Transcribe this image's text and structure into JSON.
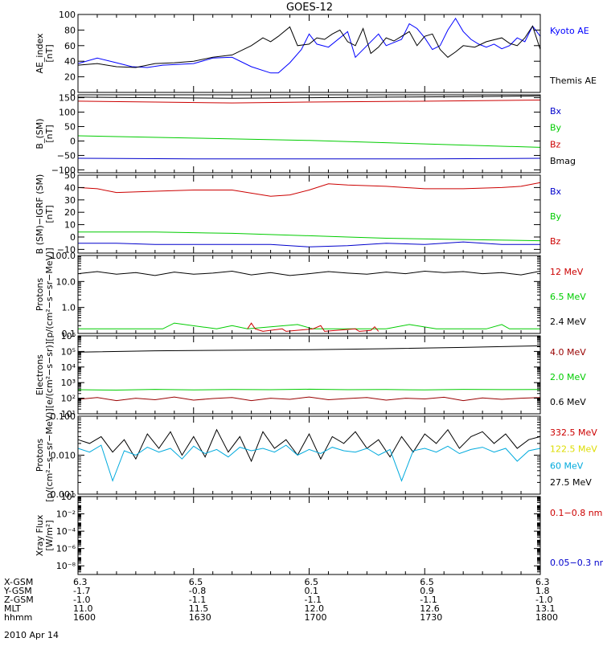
{
  "title": "GOES-12",
  "date": "2010 Apr 14",
  "x_ticks": [
    "1600",
    "1630",
    "1700",
    "1730",
    "1800"
  ],
  "ephemeris": {
    "rows": [
      {
        "label": "X-GSM",
        "values": [
          "6.3",
          "6.5",
          "6.5",
          "6.5",
          "6.3"
        ]
      },
      {
        "label": "Y-GSM",
        "values": [
          "-1.7",
          "-0.8",
          "0.1",
          "0.9",
          "1.8"
        ]
      },
      {
        "label": "Z-GSM",
        "values": [
          "-1.0",
          "-1.1",
          "-1.1",
          "-1.1",
          "-1.0"
        ]
      },
      {
        "label": "MLT",
        "values": [
          "11.0",
          "11.5",
          "12.0",
          "12.6",
          "13.1"
        ]
      },
      {
        "label": "hhmm",
        "values": [
          "1600",
          "1630",
          "1700",
          "1730",
          "1800"
        ]
      }
    ]
  },
  "chart_data": [
    {
      "type": "line",
      "scale": "linear",
      "ylabel": [
        "AE_index",
        "[nT]"
      ],
      "ylim": [
        0,
        100
      ],
      "yticks": [
        0,
        20,
        40,
        60,
        80,
        100
      ],
      "ytick_labels": [
        "0",
        "20",
        "40",
        "60",
        "80",
        "100"
      ],
      "legend": [
        {
          "label": "Kyoto AE",
          "color": "#0000ff"
        },
        {
          "label": "Themis AE",
          "color": "#000000"
        }
      ],
      "series": [
        {
          "name": "Kyoto AE",
          "color": "#0000ff",
          "x": [
            0,
            5,
            10,
            14,
            18,
            22,
            30,
            35,
            40,
            45,
            50,
            52,
            55,
            58,
            60,
            62,
            65,
            70,
            72,
            75,
            78,
            80,
            84,
            86,
            88,
            90,
            92,
            94,
            96,
            98,
            100,
            102,
            104,
            106,
            108,
            110,
            112,
            114,
            116,
            118,
            120
          ],
          "y": [
            37,
            44,
            38,
            33,
            32,
            35,
            37,
            44,
            45,
            33,
            25,
            25,
            38,
            55,
            75,
            62,
            58,
            78,
            45,
            60,
            75,
            60,
            68,
            88,
            82,
            70,
            55,
            60,
            80,
            95,
            78,
            68,
            62,
            58,
            62,
            56,
            60,
            70,
            65,
            85,
            72
          ]
        },
        {
          "name": "Themis AE",
          "color": "#000000",
          "x": [
            0,
            5,
            10,
            15,
            20,
            25,
            30,
            35,
            40,
            45,
            48,
            50,
            52,
            55,
            57,
            60,
            62,
            64,
            66,
            68,
            70,
            72,
            74,
            76,
            78,
            80,
            82,
            84,
            86,
            88,
            90,
            92,
            94,
            96,
            98,
            100,
            103,
            106,
            110,
            112,
            114,
            116,
            118,
            120
          ],
          "y": [
            35,
            37,
            33,
            32,
            37,
            38,
            40,
            45,
            48,
            60,
            70,
            65,
            72,
            84,
            60,
            62,
            70,
            68,
            75,
            80,
            65,
            60,
            82,
            50,
            58,
            70,
            66,
            72,
            78,
            60,
            72,
            75,
            55,
            45,
            52,
            60,
            58,
            65,
            70,
            63,
            60,
            70,
            85,
            55
          ]
        }
      ]
    },
    {
      "type": "line",
      "scale": "linear",
      "ylabel": [
        "B_(SM)",
        "[nT]"
      ],
      "ylim": [
        -110,
        160
      ],
      "yticks": [
        -100,
        -50,
        0,
        50,
        100,
        150
      ],
      "ytick_labels": [
        "−100",
        "−50",
        "0",
        "50",
        "100",
        "150"
      ],
      "legend": [
        {
          "label": "Bx",
          "color": "#0000cc"
        },
        {
          "label": "By",
          "color": "#00cc00"
        },
        {
          "label": "Bz",
          "color": "#cc0000"
        },
        {
          "label": "Bmag",
          "color": "#000000"
        }
      ],
      "series": [
        {
          "name": "Bx",
          "color": "#0000cc",
          "x": [
            0,
            30,
            60,
            90,
            120
          ],
          "y": [
            -60,
            -62,
            -62,
            -62,
            -60
          ]
        },
        {
          "name": "By",
          "color": "#00cc00",
          "x": [
            0,
            30,
            60,
            90,
            120
          ],
          "y": [
            18,
            10,
            2,
            -10,
            -22
          ]
        },
        {
          "name": "Bz",
          "color": "#cc0000",
          "x": [
            0,
            20,
            40,
            60,
            80,
            100,
            120
          ],
          "y": [
            138,
            135,
            132,
            135,
            137,
            139,
            142
          ]
        },
        {
          "name": "Bmag",
          "color": "#000000",
          "x": [
            0,
            20,
            40,
            60,
            80,
            100,
            120
          ],
          "y": [
            152,
            150,
            148,
            150,
            152,
            154,
            156
          ]
        }
      ]
    },
    {
      "type": "line",
      "scale": "linear",
      "ylabel": [
        "B (SM)−IGRF (SM)",
        "[nT]"
      ],
      "ylim": [
        -13,
        50
      ],
      "yticks": [
        -10,
        0,
        10,
        20,
        30,
        40,
        50
      ],
      "ytick_labels": [
        "−10",
        "0",
        "10",
        "20",
        "30",
        "40",
        "50"
      ],
      "legend": [
        {
          "label": "Bx",
          "color": "#0000cc"
        },
        {
          "label": "By",
          "color": "#00cc00"
        },
        {
          "label": "Bz",
          "color": "#cc0000"
        }
      ],
      "series": [
        {
          "name": "Bx",
          "color": "#0000cc",
          "x": [
            0,
            10,
            20,
            30,
            40,
            50,
            60,
            70,
            80,
            90,
            100,
            110,
            120
          ],
          "y": [
            -5,
            -5,
            -6,
            -6,
            -6,
            -6,
            -8,
            -7,
            -5,
            -6,
            -4,
            -6,
            -6
          ]
        },
        {
          "name": "By",
          "color": "#00cc00",
          "x": [
            0,
            20,
            40,
            60,
            70,
            80,
            100,
            120
          ],
          "y": [
            4,
            4,
            3,
            1,
            0,
            -1,
            -2,
            -3
          ]
        },
        {
          "name": "Bz",
          "color": "#cc0000",
          "x": [
            0,
            5,
            10,
            20,
            30,
            40,
            50,
            55,
            60,
            65,
            70,
            80,
            90,
            100,
            110,
            115,
            120
          ],
          "y": [
            40,
            39,
            36,
            37,
            38,
            38,
            33,
            34,
            38,
            43,
            42,
            41,
            39,
            39,
            40,
            41,
            44
          ]
        }
      ]
    },
    {
      "type": "line",
      "scale": "log",
      "ylabel": [
        "Protons",
        "[p/(cm²−s−sr−MeV)]"
      ],
      "ylim": [
        0.1,
        100
      ],
      "yticks": [
        0.1,
        1,
        10,
        100
      ],
      "ytick_labels": [
        "0.1",
        "1.0",
        "10.0",
        "100.0"
      ],
      "legend": [
        {
          "label": "12 MeV",
          "color": "#cc0000"
        },
        {
          "label": "6.5 MeV",
          "color": "#00cc00"
        },
        {
          "label": "2.4 MeV",
          "color": "#000000"
        }
      ],
      "series": [
        {
          "name": "2.4 MeV",
          "color": "#000000",
          "x": [
            0,
            5,
            10,
            15,
            20,
            25,
            30,
            35,
            40,
            45,
            50,
            55,
            60,
            65,
            70,
            75,
            80,
            85,
            90,
            95,
            100,
            105,
            110,
            115,
            120
          ],
          "y": [
            20,
            24,
            19,
            22,
            17,
            23,
            19,
            21,
            25,
            18,
            22,
            17,
            20,
            24,
            21,
            19,
            23,
            20,
            25,
            22,
            24,
            20,
            22,
            18,
            25
          ]
        },
        {
          "name": "6.5 MeV",
          "color": "#00cc00",
          "x": [
            0,
            2,
            4,
            22,
            25,
            36,
            40,
            44,
            57,
            61,
            66,
            80,
            86,
            93,
            101,
            106,
            110,
            112,
            118,
            120
          ],
          "y": [
            0.15,
            0.15,
            0.15,
            0.15,
            0.25,
            0.15,
            0.2,
            0.15,
            0.22,
            0.15,
            0.15,
            0.15,
            0.22,
            0.15,
            0.15,
            0.15,
            0.22,
            0.15,
            0.15,
            0.15
          ]
        },
        {
          "name": "12 MeV",
          "color": "#cc0000",
          "x": [
            44,
            45,
            46,
            48,
            53,
            54,
            61,
            63,
            64,
            72,
            73,
            76,
            77,
            78
          ],
          "y": [
            0.15,
            0.25,
            0.15,
            0.12,
            0.15,
            0.12,
            0.15,
            0.2,
            0.12,
            0.15,
            0.12,
            0.13,
            0.18,
            0.12
          ]
        }
      ]
    },
    {
      "type": "line",
      "scale": "log",
      "ylabel": [
        "Electrons",
        "[e/(cm²−s−sr)]"
      ],
      "ylim": [
        10,
        1000000
      ],
      "yticks": [
        10,
        100,
        1000,
        10000,
        100000,
        1000000
      ],
      "ytick_labels": [
        "10¹",
        "10²",
        "10³",
        "10⁴",
        "10⁵",
        "10⁶"
      ],
      "legend": [
        {
          "label": "4.0 MeV",
          "color": "#990000"
        },
        {
          "label": "2.0 MeV",
          "color": "#00cc00"
        },
        {
          "label": "0.6 MeV",
          "color": "#000000"
        }
      ],
      "series": [
        {
          "name": "0.6 MeV",
          "color": "#000000",
          "x": [
            0,
            20,
            40,
            60,
            80,
            100,
            120
          ],
          "y": [
            90000,
            110000,
            120000,
            130000,
            150000,
            180000,
            230000
          ]
        },
        {
          "name": "2.0 MeV",
          "color": "#00cc00",
          "x": [
            0,
            10,
            20,
            30,
            40,
            50,
            60,
            70,
            80,
            90,
            100,
            110,
            120
          ],
          "y": [
            350,
            330,
            370,
            340,
            360,
            350,
            380,
            350,
            360,
            340,
            370,
            355,
            360
          ]
        },
        {
          "name": "4.0 MeV",
          "color": "#990000",
          "x": [
            0,
            5,
            10,
            15,
            20,
            25,
            30,
            35,
            40,
            45,
            50,
            55,
            60,
            65,
            70,
            75,
            80,
            85,
            90,
            95,
            100,
            105,
            110,
            115,
            120
          ],
          "y": [
            85,
            110,
            70,
            100,
            80,
            120,
            75,
            95,
            110,
            70,
            100,
            85,
            120,
            80,
            95,
            110,
            75,
            100,
            90,
            115,
            70,
            105,
            85,
            100,
            110
          ]
        }
      ]
    },
    {
      "type": "line",
      "scale": "log",
      "ylabel": [
        "Protons",
        "[p/(cm²−s−sr−MeV)]"
      ],
      "ylim": [
        0.001,
        0.1
      ],
      "yticks": [
        0.001,
        0.01,
        0.1
      ],
      "ytick_labels": [
        "0.001",
        "0.010",
        "0.100"
      ],
      "legend": [
        {
          "label": "332.5 MeV",
          "color": "#cc0000"
        },
        {
          "label": "122.5 MeV",
          "color": "#dddd00"
        },
        {
          "label": "60 MeV",
          "color": "#00aadd"
        },
        {
          "label": "27.5 MeV",
          "color": "#000000"
        }
      ],
      "series": [
        {
          "name": "27.5 MeV",
          "color": "#000000",
          "x": [
            0,
            3,
            6,
            9,
            12,
            15,
            18,
            21,
            24,
            27,
            30,
            33,
            36,
            39,
            42,
            45,
            48,
            51,
            54,
            57,
            60,
            63,
            66,
            69,
            72,
            75,
            78,
            81,
            84,
            87,
            90,
            93,
            96,
            99,
            102,
            105,
            108,
            111,
            114,
            117,
            120
          ],
          "y": [
            0.025,
            0.02,
            0.03,
            0.012,
            0.025,
            0.008,
            0.035,
            0.015,
            0.04,
            0.01,
            0.03,
            0.009,
            0.045,
            0.012,
            0.03,
            0.007,
            0.04,
            0.015,
            0.025,
            0.01,
            0.035,
            0.008,
            0.03,
            0.02,
            0.04,
            0.015,
            0.025,
            0.009,
            0.03,
            0.012,
            0.035,
            0.02,
            0.045,
            0.015,
            0.03,
            0.04,
            0.02,
            0.035,
            0.015,
            0.025,
            0.03
          ]
        },
        {
          "name": "60 MeV",
          "color": "#00aadd",
          "x": [
            0,
            3,
            6,
            9,
            12,
            15,
            18,
            21,
            24,
            27,
            30,
            33,
            36,
            39,
            42,
            45,
            48,
            51,
            54,
            57,
            60,
            63,
            66,
            69,
            72,
            75,
            78,
            81,
            84,
            87,
            90,
            93,
            96,
            99,
            102,
            105,
            108,
            111,
            114,
            117,
            120
          ],
          "y": [
            0.015,
            0.012,
            0.018,
            0.0022,
            0.013,
            0.01,
            0.016,
            0.012,
            0.015,
            0.008,
            0.017,
            0.011,
            0.014,
            0.009,
            0.016,
            0.013,
            0.015,
            0.012,
            0.018,
            0.01,
            0.014,
            0.011,
            0.016,
            0.013,
            0.012,
            0.015,
            0.01,
            0.014,
            0.0022,
            0.013,
            0.015,
            0.012,
            0.017,
            0.011,
            0.014,
            0.016,
            0.012,
            0.015,
            0.007,
            0.013,
            0.015
          ]
        },
        {
          "name": "122.5 MeV",
          "color": "#dddd00",
          "x": [],
          "y": []
        },
        {
          "name": "332.5 MeV",
          "color": "#cc0000",
          "x": [],
          "y": []
        }
      ]
    },
    {
      "type": "line",
      "scale": "log",
      "ylabel": [
        "Xray  Flux",
        "[W/m²]"
      ],
      "ylim": [
        1e-09,
        1
      ],
      "yticks": [
        1e-08,
        1e-06,
        0.0001,
        0.01,
        1
      ],
      "ytick_labels": [
        "10⁻⁸",
        "10⁻⁶",
        "10⁻⁴",
        "10⁻²",
        "10⁰"
      ],
      "legend": [
        {
          "label": "0.1−0.8 nm",
          "color": "#cc0000"
        },
        {
          "label": "0.05−0.3 nm",
          "color": "#0000cc"
        }
      ],
      "series": []
    }
  ]
}
